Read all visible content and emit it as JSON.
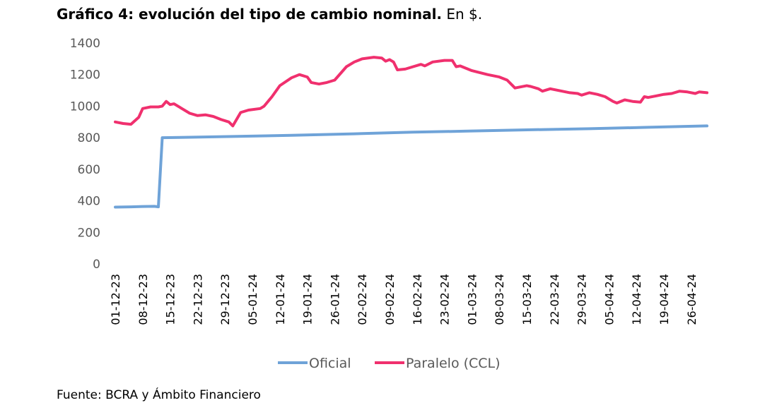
{
  "title": {
    "bold": "Gráfico 4: evolución del tipo de cambio nominal.",
    "unit": "En $."
  },
  "source": "Fuente: BCRA y Ámbito Financiero",
  "chart_data": {
    "type": "line",
    "ylim": [
      0,
      1400
    ],
    "yticks": [
      0,
      200,
      400,
      600,
      800,
      1000,
      1200,
      1400
    ],
    "xlim": [
      "2023-12-01",
      "2024-04-30"
    ],
    "xtick_labels": [
      "01-12-23",
      "08-12-23",
      "15-12-23",
      "22-12-23",
      "29-12-23",
      "05-01-24",
      "12-01-24",
      "19-01-24",
      "26-01-24",
      "02-02-24",
      "09-02-24",
      "16-02-24",
      "23-02-24",
      "01-03-24",
      "08-03-24",
      "15-03-24",
      "22-03-24",
      "29-03-24",
      "05-04-24",
      "12-04-24",
      "19-04-24",
      "26-04-24"
    ],
    "grid": false,
    "legend_position": "bottom",
    "series": [
      {
        "name": "Oficial",
        "color": "#6FA3D8",
        "points": [
          [
            "2023-12-01",
            360
          ],
          [
            "2023-12-05",
            362
          ],
          [
            "2023-12-08",
            364
          ],
          [
            "2023-12-11",
            365
          ],
          [
            "2023-12-12",
            362
          ],
          [
            "2023-12-13",
            800
          ],
          [
            "2023-12-20",
            803
          ],
          [
            "2023-12-31",
            808
          ],
          [
            "2024-01-15",
            815
          ],
          [
            "2024-01-31",
            825
          ],
          [
            "2024-02-15",
            835
          ],
          [
            "2024-02-29",
            842
          ],
          [
            "2024-03-15",
            850
          ],
          [
            "2024-03-31",
            857
          ],
          [
            "2024-04-15",
            866
          ],
          [
            "2024-04-30",
            875
          ]
        ]
      },
      {
        "name": "Paralelo (CCL)",
        "color": "#F0306E",
        "points": [
          [
            "2023-12-01",
            900
          ],
          [
            "2023-12-03",
            890
          ],
          [
            "2023-12-05",
            885
          ],
          [
            "2023-12-07",
            930
          ],
          [
            "2023-12-08",
            985
          ],
          [
            "2023-12-10",
            995
          ],
          [
            "2023-12-12",
            995
          ],
          [
            "2023-12-13",
            1000
          ],
          [
            "2023-12-14",
            1030
          ],
          [
            "2023-12-15",
            1010
          ],
          [
            "2023-12-16",
            1015
          ],
          [
            "2023-12-18",
            985
          ],
          [
            "2023-12-20",
            955
          ],
          [
            "2023-12-22",
            940
          ],
          [
            "2023-12-24",
            945
          ],
          [
            "2023-12-26",
            935
          ],
          [
            "2023-12-28",
            915
          ],
          [
            "2023-12-30",
            900
          ],
          [
            "2023-12-31",
            875
          ],
          [
            "2024-01-02",
            960
          ],
          [
            "2024-01-04",
            975
          ],
          [
            "2024-01-07",
            985
          ],
          [
            "2024-01-08",
            1000
          ],
          [
            "2024-01-10",
            1060
          ],
          [
            "2024-01-12",
            1130
          ],
          [
            "2024-01-15",
            1180
          ],
          [
            "2024-01-17",
            1200
          ],
          [
            "2024-01-19",
            1185
          ],
          [
            "2024-01-20",
            1150
          ],
          [
            "2024-01-22",
            1140
          ],
          [
            "2024-01-24",
            1150
          ],
          [
            "2024-01-26",
            1165
          ],
          [
            "2024-01-29",
            1250
          ],
          [
            "2024-01-31",
            1280
          ],
          [
            "2024-02-02",
            1300
          ],
          [
            "2024-02-05",
            1310
          ],
          [
            "2024-02-07",
            1305
          ],
          [
            "2024-02-08",
            1285
          ],
          [
            "2024-02-09",
            1295
          ],
          [
            "2024-02-10",
            1280
          ],
          [
            "2024-02-11",
            1230
          ],
          [
            "2024-02-13",
            1235
          ],
          [
            "2024-02-15",
            1250
          ],
          [
            "2024-02-17",
            1265
          ],
          [
            "2024-02-18",
            1255
          ],
          [
            "2024-02-20",
            1280
          ],
          [
            "2024-02-23",
            1290
          ],
          [
            "2024-02-25",
            1290
          ],
          [
            "2024-02-26",
            1250
          ],
          [
            "2024-02-27",
            1255
          ],
          [
            "2024-03-01",
            1225
          ],
          [
            "2024-03-05",
            1200
          ],
          [
            "2024-03-08",
            1185
          ],
          [
            "2024-03-10",
            1165
          ],
          [
            "2024-03-12",
            1115
          ],
          [
            "2024-03-15",
            1130
          ],
          [
            "2024-03-16",
            1125
          ],
          [
            "2024-03-18",
            1110
          ],
          [
            "2024-03-19",
            1095
          ],
          [
            "2024-03-21",
            1110
          ],
          [
            "2024-03-23",
            1100
          ],
          [
            "2024-03-26",
            1085
          ],
          [
            "2024-03-28",
            1080
          ],
          [
            "2024-03-29",
            1070
          ],
          [
            "2024-03-31",
            1085
          ],
          [
            "2024-04-02",
            1075
          ],
          [
            "2024-04-04",
            1060
          ],
          [
            "2024-04-06",
            1030
          ],
          [
            "2024-04-07",
            1020
          ],
          [
            "2024-04-09",
            1040
          ],
          [
            "2024-04-11",
            1030
          ],
          [
            "2024-04-13",
            1025
          ],
          [
            "2024-04-14",
            1060
          ],
          [
            "2024-04-15",
            1055
          ],
          [
            "2024-04-17",
            1065
          ],
          [
            "2024-04-19",
            1075
          ],
          [
            "2024-04-21",
            1080
          ],
          [
            "2024-04-23",
            1095
          ],
          [
            "2024-04-25",
            1090
          ],
          [
            "2024-04-27",
            1080
          ],
          [
            "2024-04-28",
            1090
          ],
          [
            "2024-04-30",
            1085
          ]
        ]
      }
    ]
  }
}
